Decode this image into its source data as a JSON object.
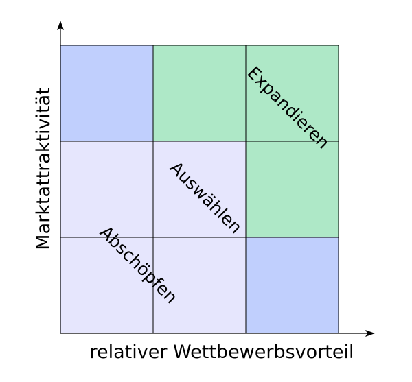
{
  "diagram": {
    "x_axis_label": "relativer Wettbewerbsvorteil",
    "y_axis_label": "Marktattraktivität",
    "colors": {
      "blue": "#c0cffd",
      "green": "#aee8c7",
      "lavender": "#e6e6fd",
      "line": "#000000"
    },
    "grid": {
      "rows": 3,
      "cols": 3,
      "cells": [
        [
          "blue",
          "green",
          "green"
        ],
        [
          "lavender",
          "lavender",
          "green"
        ],
        [
          "lavender",
          "lavender",
          "blue"
        ]
      ]
    },
    "zones": [
      {
        "key": "expand",
        "label": "Expandieren"
      },
      {
        "key": "select",
        "label": "Auswählen"
      },
      {
        "key": "harvest",
        "label": "Abschöpfen"
      }
    ]
  }
}
